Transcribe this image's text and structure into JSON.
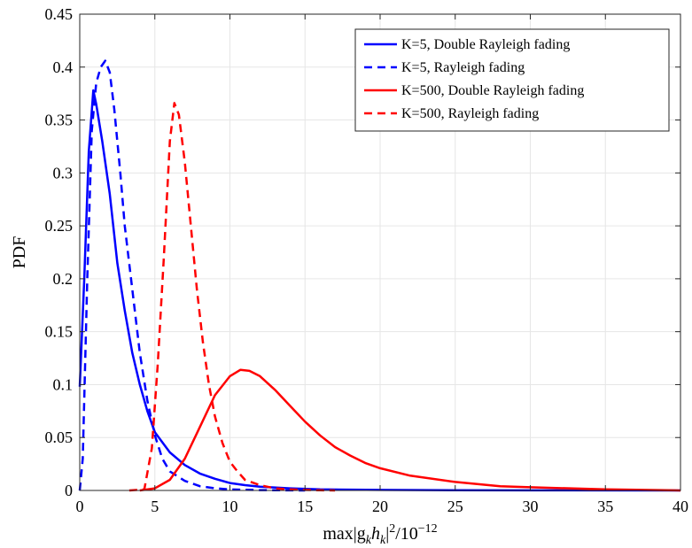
{
  "chart_data": {
    "type": "line",
    "xlabel": "max|g_k h_k|^2/10^-12",
    "xlabel_parts": {
      "main": "max|g",
      "sub1": "k",
      "mid": "h",
      "sub2": "k",
      "sup1": "2",
      "tail": "/10",
      "sup2": "−12"
    },
    "ylabel": "PDF",
    "xlim": [
      0,
      40
    ],
    "ylim": [
      0,
      0.45
    ],
    "xticks": [
      "0",
      "5",
      "10",
      "15",
      "20",
      "25",
      "30",
      "35",
      "40"
    ],
    "yticks": [
      "0",
      "0.05",
      "0.1",
      "0.15",
      "0.2",
      "0.25",
      "0.3",
      "0.35",
      "0.4",
      "0.45"
    ],
    "grid": true,
    "legend_position": "top-right",
    "series": [
      {
        "name": "K=5, Double Rayleigh fading",
        "color": "#0000ff",
        "dash": "solid",
        "x": [
          0,
          0.3,
          0.6,
          0.9,
          1.1,
          1.5,
          2.0,
          2.5,
          3.0,
          3.5,
          4.0,
          4.5,
          5.0,
          6.0,
          7.0,
          8.0,
          9.0,
          10.0,
          11.0,
          12.0,
          14.0,
          16.0,
          20.0,
          25.0,
          30.0,
          40.0
        ],
        "y": [
          0.098,
          0.2,
          0.32,
          0.378,
          0.365,
          0.33,
          0.28,
          0.215,
          0.17,
          0.13,
          0.1,
          0.075,
          0.055,
          0.036,
          0.024,
          0.016,
          0.011,
          0.007,
          0.005,
          0.0035,
          0.002,
          0.001,
          0.0005,
          0.0002,
          0.0001,
          0
        ]
      },
      {
        "name": "K=5, Rayleigh fading",
        "color": "#0000ff",
        "dash": "dashed",
        "x": [
          0,
          0.2,
          0.5,
          0.8,
          1.1,
          1.4,
          1.7,
          2.0,
          2.3,
          2.7,
          3.0,
          3.5,
          4.0,
          4.5,
          5.0,
          5.5,
          6.0,
          7.0,
          8.0,
          9.0,
          10.0,
          12.0,
          15.0
        ],
        "y": [
          0,
          0.03,
          0.2,
          0.34,
          0.385,
          0.4,
          0.406,
          0.395,
          0.36,
          0.3,
          0.25,
          0.19,
          0.13,
          0.085,
          0.052,
          0.03,
          0.018,
          0.009,
          0.004,
          0.002,
          0.001,
          0.0003,
          0
        ]
      },
      {
        "name": "K=500, Double Rayleigh fading",
        "color": "#ff0000",
        "dash": "solid",
        "x": [
          4.0,
          5.0,
          6.0,
          7.0,
          8.0,
          9.0,
          10.0,
          10.7,
          11.3,
          12.0,
          13.0,
          14.0,
          15.0,
          16.0,
          17.0,
          18.0,
          19.0,
          20.0,
          22.0,
          25.0,
          28.0,
          30.0,
          35.0,
          40.0
        ],
        "y": [
          0,
          0.002,
          0.01,
          0.03,
          0.06,
          0.09,
          0.108,
          0.114,
          0.113,
          0.108,
          0.095,
          0.08,
          0.065,
          0.052,
          0.041,
          0.033,
          0.026,
          0.021,
          0.014,
          0.008,
          0.004,
          0.003,
          0.001,
          0
        ]
      },
      {
        "name": "K=500, Rayleigh fading",
        "color": "#ff0000",
        "dash": "dashed",
        "x": [
          3.3,
          4.3,
          4.8,
          5.2,
          5.6,
          6.0,
          6.3,
          6.6,
          7.0,
          7.4,
          7.8,
          8.2,
          8.6,
          9.0,
          9.5,
          10.0,
          10.5,
          11.0,
          12.0,
          13.0,
          14.0,
          15.0,
          16.0,
          17.0
        ],
        "y": [
          0,
          0.001,
          0.04,
          0.12,
          0.22,
          0.33,
          0.366,
          0.355,
          0.31,
          0.25,
          0.19,
          0.14,
          0.1,
          0.07,
          0.045,
          0.027,
          0.018,
          0.01,
          0.005,
          0.002,
          0.001,
          0.0005,
          0.0002,
          0
        ]
      }
    ]
  }
}
